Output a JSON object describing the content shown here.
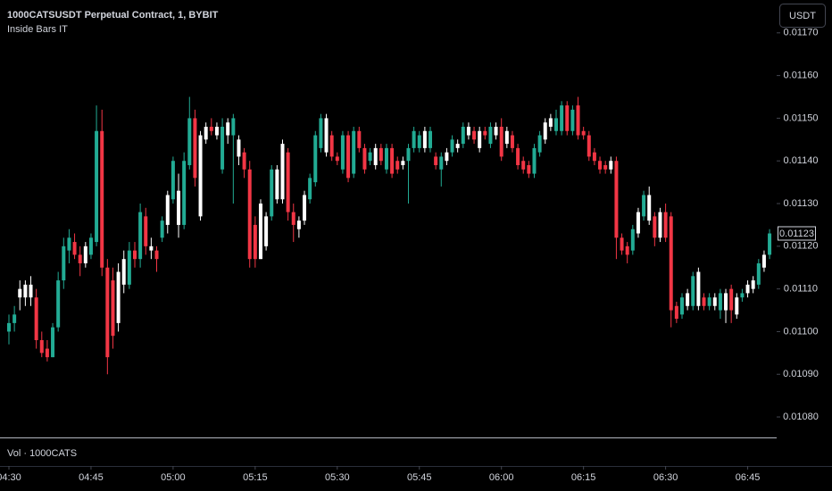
{
  "chart_data": {
    "type": "candlestick",
    "title": "1000CATSUSDT Perpetual Contract, 1, BYBIT",
    "subtitle": "Inside Bars IT",
    "currency_button": "USDT",
    "volume_label": "Vol · 1000CATS",
    "up_color": "#22ab94",
    "down_color": "#f23645",
    "inside_color": "#ffffff",
    "ylim": [
      0.010752,
      0.011777
    ],
    "yticks": [
      {
        "value": 0.0108,
        "label": "0.01080"
      },
      {
        "value": 0.0109,
        "label": "0.01090"
      },
      {
        "value": 0.011,
        "label": "0.01100"
      },
      {
        "value": 0.0111,
        "label": "0.01110"
      },
      {
        "value": 0.0112,
        "label": "0.01120"
      },
      {
        "value": 0.0113,
        "label": "0.01130"
      },
      {
        "value": 0.0114,
        "label": "0.01140"
      },
      {
        "value": 0.0115,
        "label": "0.01150"
      },
      {
        "value": 0.0116,
        "label": "0.01160"
      },
      {
        "value": 0.0117,
        "label": "0.01170"
      }
    ],
    "last_price": 0.01123,
    "categories": [
      "04:30",
      null,
      null,
      null,
      null,
      null,
      null,
      null,
      null,
      null,
      null,
      null,
      null,
      null,
      null,
      "04:45",
      null,
      null,
      null,
      null,
      null,
      null,
      null,
      null,
      null,
      null,
      null,
      null,
      null,
      null,
      "05:00",
      null,
      null,
      null,
      null,
      null,
      null,
      null,
      null,
      null,
      null,
      null,
      null,
      null,
      null,
      "05:15",
      null,
      null,
      null,
      null,
      null,
      null,
      null,
      null,
      null,
      null,
      null,
      null,
      null,
      null,
      "05:30",
      null,
      null,
      null,
      null,
      null,
      null,
      null,
      null,
      null,
      null,
      null,
      null,
      null,
      null,
      "05:45",
      null,
      null,
      null,
      null,
      null,
      null,
      null,
      null,
      null,
      null,
      null,
      null,
      null,
      null,
      "06:00",
      null,
      null,
      null,
      null,
      null,
      null,
      null,
      null,
      null,
      null,
      null,
      null,
      null,
      null,
      "06:15",
      null,
      null,
      null,
      null,
      null,
      null,
      null,
      null,
      null,
      null,
      null,
      null,
      null,
      null,
      "06:30",
      null,
      null,
      null,
      null,
      null,
      null,
      null,
      null,
      null,
      null,
      null,
      null,
      null,
      null,
      "06:45",
      null,
      null,
      null,
      null
    ],
    "ohlc": [
      [
        0.011,
        0.01104,
        0.01097,
        0.01102
      ],
      [
        0.01102,
        0.01106,
        0.011,
        0.01104
      ],
      [
        0.01108,
        0.01112,
        0.01105,
        0.0111
      ],
      [
        0.01108,
        0.01112,
        0.01106,
        0.01111
      ],
      [
        0.01111,
        0.01113,
        0.01106,
        0.01108
      ],
      [
        0.01108,
        0.0111,
        0.01096,
        0.01098
      ],
      [
        0.01098,
        0.011,
        0.01094,
        0.01095
      ],
      [
        0.01096,
        0.01098,
        0.01093,
        0.01094
      ],
      [
        0.01094,
        0.01102,
        0.01094,
        0.01101
      ],
      [
        0.01101,
        0.01114,
        0.011,
        0.01112
      ],
      [
        0.01112,
        0.01122,
        0.0111,
        0.0112
      ],
      [
        0.01119,
        0.01124,
        0.01116,
        0.01122
      ],
      [
        0.01121,
        0.01123,
        0.01117,
        0.01118
      ],
      [
        0.01118,
        0.0112,
        0.01113,
        0.01116
      ],
      [
        0.01116,
        0.01121,
        0.01115,
        0.0112
      ],
      [
        0.01118,
        0.01123,
        0.01117,
        0.01122
      ],
      [
        0.01121,
        0.01153,
        0.0112,
        0.01147
      ],
      [
        0.01147,
        0.01152,
        0.01113,
        0.01115
      ],
      [
        0.01115,
        0.01117,
        0.0109,
        0.01094
      ],
      [
        0.01112,
        0.01115,
        0.01096,
        0.01099
      ],
      [
        0.01102,
        0.01116,
        0.011,
        0.01114
      ],
      [
        0.01111,
        0.01119,
        0.01109,
        0.01117
      ],
      [
        0.01111,
        0.01121,
        0.0111,
        0.01119
      ],
      [
        0.01119,
        0.01121,
        0.01115,
        0.01117
      ],
      [
        0.01117,
        0.0113,
        0.01115,
        0.01128
      ],
      [
        0.01127,
        0.01129,
        0.01118,
        0.0112
      ],
      [
        0.0112,
        0.01122,
        0.01117,
        0.01119
      ],
      [
        0.01119,
        0.0112,
        0.01114,
        0.01117
      ],
      [
        0.01122,
        0.01127,
        0.01121,
        0.01126
      ],
      [
        0.01125,
        0.01133,
        0.01123,
        0.01132
      ],
      [
        0.01131,
        0.01141,
        0.0113,
        0.0114
      ],
      [
        0.01133,
        0.01137,
        0.01122,
        0.01125
      ],
      [
        0.01125,
        0.01142,
        0.01124,
        0.0114
      ],
      [
        0.01139,
        0.01155,
        0.01138,
        0.0115
      ],
      [
        0.0115,
        0.01152,
        0.01134,
        0.01136
      ],
      [
        0.01127,
        0.01147,
        0.01126,
        0.01146
      ],
      [
        0.01145,
        0.01149,
        0.01144,
        0.01148
      ],
      [
        0.01148,
        0.0115,
        0.01146,
        0.01147
      ],
      [
        0.01146,
        0.01149,
        0.01145,
        0.01148
      ],
      [
        0.01138,
        0.0115,
        0.01137,
        0.01148
      ],
      [
        0.01146,
        0.0115,
        0.01144,
        0.01149
      ],
      [
        0.01146,
        0.01151,
        0.0113,
        0.0115
      ],
      [
        0.01145,
        0.01146,
        0.01139,
        0.01141
      ],
      [
        0.01142,
        0.01143,
        0.01136,
        0.01138
      ],
      [
        0.01138,
        0.0114,
        0.01115,
        0.01117
      ],
      [
        0.01125,
        0.01127,
        0.01115,
        0.01117
      ],
      [
        0.01117,
        0.01131,
        0.01117,
        0.0113
      ],
      [
        0.0112,
        0.01128,
        0.01119,
        0.01127
      ],
      [
        0.01127,
        0.01139,
        0.01126,
        0.01138
      ],
      [
        0.01131,
        0.01139,
        0.0113,
        0.01138
      ],
      [
        0.01131,
        0.01145,
        0.0113,
        0.01144
      ],
      [
        0.01142,
        0.01143,
        0.01126,
        0.01128
      ],
      [
        0.01128,
        0.0113,
        0.01121,
        0.01125
      ],
      [
        0.01124,
        0.01127,
        0.01122,
        0.01126
      ],
      [
        0.01126,
        0.01133,
        0.01125,
        0.01132
      ],
      [
        0.01131,
        0.01137,
        0.0113,
        0.01136
      ],
      [
        0.01135,
        0.01147,
        0.01134,
        0.01146
      ],
      [
        0.01143,
        0.01151,
        0.01142,
        0.0115
      ],
      [
        0.0115,
        0.01151,
        0.01141,
        0.01142
      ],
      [
        0.01146,
        0.01147,
        0.0114,
        0.01141
      ],
      [
        0.01141,
        0.01142,
        0.01139,
        0.0114
      ],
      [
        0.01138,
        0.01147,
        0.01137,
        0.01146
      ],
      [
        0.01146,
        0.01147,
        0.01135,
        0.01136
      ],
      [
        0.01137,
        0.01148,
        0.01136,
        0.01147
      ],
      [
        0.01147,
        0.01148,
        0.01142,
        0.01143
      ],
      [
        0.01143,
        0.01144,
        0.01137,
        0.01138
      ],
      [
        0.0114,
        0.01143,
        0.01139,
        0.01142
      ],
      [
        0.01139,
        0.01144,
        0.01138,
        0.01143
      ],
      [
        0.01143,
        0.01144,
        0.01139,
        0.0114
      ],
      [
        0.01138,
        0.01144,
        0.01137,
        0.01143
      ],
      [
        0.01143,
        0.01144,
        0.01136,
        0.01137
      ],
      [
        0.0114,
        0.01141,
        0.01137,
        0.01138
      ],
      [
        0.01139,
        0.01141,
        0.01138,
        0.0114
      ],
      [
        0.0114,
        0.01144,
        0.0113,
        0.01143
      ],
      [
        0.01143,
        0.01148,
        0.01142,
        0.01147
      ],
      [
        0.01143,
        0.01147,
        0.01142,
        0.01146
      ],
      [
        0.01147,
        0.01148,
        0.01142,
        0.01143
      ],
      [
        0.01143,
        0.01148,
        0.01142,
        0.01147
      ],
      [
        0.01141,
        0.01142,
        0.01138,
        0.01139
      ],
      [
        0.01138,
        0.01142,
        0.01134,
        0.01141
      ],
      [
        0.0114,
        0.01143,
        0.01139,
        0.01142
      ],
      [
        0.01142,
        0.01146,
        0.01141,
        0.01145
      ],
      [
        0.01143,
        0.01145,
        0.01142,
        0.01144
      ],
      [
        0.01144,
        0.01149,
        0.01143,
        0.01148
      ],
      [
        0.01146,
        0.01149,
        0.01145,
        0.01148
      ],
      [
        0.01147,
        0.01148,
        0.01144,
        0.01145
      ],
      [
        0.01143,
        0.01148,
        0.01142,
        0.01147
      ],
      [
        0.01147,
        0.01148,
        0.01145,
        0.01146
      ],
      [
        0.01144,
        0.01149,
        0.01143,
        0.01148
      ],
      [
        0.01146,
        0.01149,
        0.01145,
        0.01148
      ],
      [
        0.01148,
        0.0115,
        0.0114,
        0.01141
      ],
      [
        0.01144,
        0.01148,
        0.01143,
        0.01147
      ],
      [
        0.01146,
        0.01147,
        0.01142,
        0.01143
      ],
      [
        0.01143,
        0.01144,
        0.01138,
        0.01139
      ],
      [
        0.0114,
        0.01141,
        0.01137,
        0.01138
      ],
      [
        0.01139,
        0.0114,
        0.01136,
        0.01137
      ],
      [
        0.01137,
        0.01144,
        0.01136,
        0.01143
      ],
      [
        0.01142,
        0.01147,
        0.01141,
        0.01146
      ],
      [
        0.01145,
        0.0115,
        0.01144,
        0.01149
      ],
      [
        0.01148,
        0.01151,
        0.01147,
        0.0115
      ],
      [
        0.01147,
        0.01152,
        0.01146,
        0.0115
      ],
      [
        0.01147,
        0.01154,
        0.01146,
        0.01153
      ],
      [
        0.01153,
        0.01154,
        0.01146,
        0.01147
      ],
      [
        0.01147,
        0.01153,
        0.01146,
        0.01152
      ],
      [
        0.01153,
        0.01155,
        0.01145,
        0.01146
      ],
      [
        0.01147,
        0.01148,
        0.01145,
        0.01146
      ],
      [
        0.01146,
        0.01147,
        0.0114,
        0.01141
      ],
      [
        0.01142,
        0.01143,
        0.01139,
        0.0114
      ],
      [
        0.0114,
        0.01141,
        0.01137,
        0.01138
      ],
      [
        0.01139,
        0.0114,
        0.01137,
        0.01138
      ],
      [
        0.01138,
        0.01141,
        0.01137,
        0.0114
      ],
      [
        0.0114,
        0.01141,
        0.01117,
        0.01122
      ],
      [
        0.01122,
        0.01123,
        0.01118,
        0.01119
      ],
      [
        0.0112,
        0.01121,
        0.01116,
        0.01118
      ],
      [
        0.01119,
        0.01125,
        0.01118,
        0.01124
      ],
      [
        0.01123,
        0.01129,
        0.01122,
        0.01128
      ],
      [
        0.01127,
        0.01133,
        0.01126,
        0.01132
      ],
      [
        0.01126,
        0.01134,
        0.01125,
        0.01132
      ],
      [
        0.01127,
        0.01128,
        0.0112,
        0.01122
      ],
      [
        0.01122,
        0.01129,
        0.01121,
        0.01128
      ],
      [
        0.01128,
        0.0113,
        0.01121,
        0.01122
      ],
      [
        0.01127,
        0.01128,
        0.01101,
        0.01105
      ],
      [
        0.01106,
        0.01107,
        0.01102,
        0.01103
      ],
      [
        0.01104,
        0.01109,
        0.01103,
        0.01108
      ],
      [
        0.01106,
        0.0111,
        0.01105,
        0.01109
      ],
      [
        0.01106,
        0.01114,
        0.01105,
        0.01113
      ],
      [
        0.01106,
        0.01115,
        0.01105,
        0.01114
      ],
      [
        0.01108,
        0.01109,
        0.01105,
        0.01106
      ],
      [
        0.01106,
        0.01109,
        0.01105,
        0.01108
      ],
      [
        0.01106,
        0.01109,
        0.01105,
        0.01108
      ],
      [
        0.01105,
        0.0111,
        0.01103,
        0.01109
      ],
      [
        0.01105,
        0.0111,
        0.01102,
        0.01109
      ],
      [
        0.0111,
        0.01111,
        0.01102,
        0.01105
      ],
      [
        0.01104,
        0.01109,
        0.01103,
        0.01108
      ],
      [
        0.01108,
        0.0111,
        0.01107,
        0.01109
      ],
      [
        0.01109,
        0.01112,
        0.01108,
        0.01111
      ],
      [
        0.0111,
        0.01113,
        0.01109,
        0.01112
      ],
      [
        0.01111,
        0.01117,
        0.0111,
        0.01116
      ],
      [
        0.01115,
        0.01119,
        0.01114,
        0.01118
      ],
      [
        0.01118,
        0.01124,
        0.01117,
        0.01123
      ]
    ],
    "inside_bars": [
      2,
      3,
      4,
      14,
      20,
      21,
      26,
      29,
      31,
      35,
      36,
      38,
      40,
      42,
      46,
      47,
      49,
      50,
      53,
      54,
      58,
      67,
      72,
      76,
      80,
      82,
      84,
      86,
      89,
      91,
      98,
      99,
      110,
      115,
      117,
      119,
      124,
      126,
      129,
      131,
      133,
      135,
      136,
      138
    ]
  }
}
